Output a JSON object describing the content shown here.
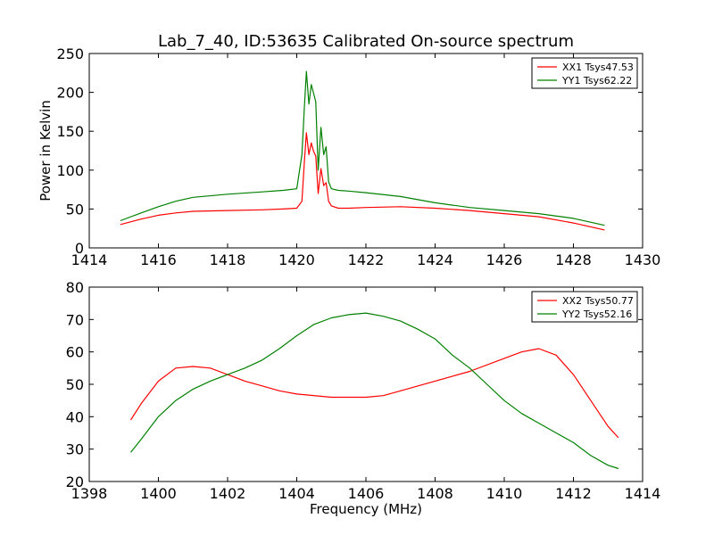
{
  "chart_data": [
    {
      "type": "line",
      "title": "Lab_7_40, ID:53635 Calibrated On-source spectrum",
      "ylabel": "Power in Kelvin",
      "xlabel": "",
      "xlim": [
        1414,
        1430
      ],
      "ylim": [
        0,
        250
      ],
      "xticks": [
        1414,
        1416,
        1418,
        1420,
        1422,
        1424,
        1426,
        1428,
        1430
      ],
      "yticks": [
        0,
        50,
        100,
        150,
        200,
        250
      ],
      "legend_position": "top-right",
      "grid": false,
      "series": [
        {
          "name": "XX1 Tsys47.53",
          "color": "#ff0000",
          "x": [
            1414.9,
            1415.5,
            1416.0,
            1416.5,
            1417.0,
            1418.0,
            1419.0,
            1419.6,
            1420.0,
            1420.15,
            1420.22,
            1420.28,
            1420.35,
            1420.42,
            1420.48,
            1420.55,
            1420.62,
            1420.7,
            1420.78,
            1420.85,
            1420.92,
            1421.0,
            1421.2,
            1421.5,
            1422.0,
            1423.0,
            1424.0,
            1425.0,
            1426.0,
            1427.0,
            1428.0,
            1428.9
          ],
          "y": [
            30,
            37,
            42,
            45,
            47,
            48,
            49,
            50,
            51,
            60,
            110,
            148,
            120,
            135,
            125,
            118,
            70,
            102,
            80,
            84,
            60,
            54,
            51,
            51,
            52,
            53,
            51,
            48,
            44,
            40,
            32,
            23
          ]
        },
        {
          "name": "YY1 Tsys62.22",
          "color": "#008000",
          "x": [
            1414.9,
            1415.5,
            1416.0,
            1416.5,
            1417.0,
            1418.0,
            1419.0,
            1419.6,
            1420.0,
            1420.15,
            1420.22,
            1420.28,
            1420.35,
            1420.42,
            1420.48,
            1420.55,
            1420.62,
            1420.7,
            1420.78,
            1420.85,
            1420.92,
            1421.0,
            1421.2,
            1421.5,
            1422.0,
            1423.0,
            1424.0,
            1425.0,
            1426.0,
            1427.0,
            1428.0,
            1428.9
          ],
          "y": [
            35,
            45,
            53,
            60,
            65,
            69,
            72,
            74,
            76,
            120,
            180,
            227,
            185,
            210,
            200,
            188,
            100,
            155,
            120,
            130,
            85,
            76,
            74,
            73,
            71,
            66,
            58,
            52,
            48,
            44,
            38,
            29
          ]
        }
      ]
    },
    {
      "type": "line",
      "title": "",
      "ylabel": "",
      "xlabel": "Frequency (MHz)",
      "xlim": [
        1398,
        1414
      ],
      "ylim": [
        20,
        80
      ],
      "xticks": [
        1398,
        1400,
        1402,
        1404,
        1406,
        1408,
        1410,
        1412,
        1414
      ],
      "yticks": [
        20,
        30,
        40,
        50,
        60,
        70,
        80
      ],
      "legend_position": "top-right",
      "grid": false,
      "series": [
        {
          "name": "XX2 Tsys50.77",
          "color": "#ff0000",
          "x": [
            1399.2,
            1399.5,
            1400.0,
            1400.5,
            1401.0,
            1401.5,
            1402.0,
            1402.5,
            1403.0,
            1403.5,
            1404.0,
            1405.0,
            1406.0,
            1406.5,
            1407.0,
            1408.0,
            1409.0,
            1410.0,
            1410.5,
            1411.0,
            1411.5,
            1412.0,
            1412.5,
            1413.0,
            1413.3
          ],
          "y": [
            39,
            44,
            51,
            55,
            55.5,
            55,
            53,
            51,
            49.5,
            48,
            47,
            46,
            46,
            46.5,
            48,
            51,
            54,
            58,
            60,
            61,
            59,
            53,
            45,
            37,
            33.5
          ]
        },
        {
          "name": "YY2 Tsys52.16",
          "color": "#008000",
          "x": [
            1399.2,
            1399.5,
            1400.0,
            1400.5,
            1401.0,
            1401.5,
            1402.0,
            1402.5,
            1403.0,
            1403.5,
            1404.0,
            1404.5,
            1405.0,
            1405.5,
            1406.0,
            1406.5,
            1407.0,
            1407.5,
            1408.0,
            1408.5,
            1409.0,
            1409.5,
            1410.0,
            1410.5,
            1411.0,
            1411.5,
            1412.0,
            1412.5,
            1413.0,
            1413.3
          ],
          "y": [
            29,
            33,
            40,
            45,
            48.5,
            51,
            53,
            55,
            57.5,
            61,
            65,
            68.5,
            70.5,
            71.5,
            72,
            71,
            69.5,
            67,
            64,
            59,
            55,
            50,
            45,
            41,
            38,
            35,
            32,
            28,
            25,
            24
          ]
        }
      ]
    }
  ]
}
